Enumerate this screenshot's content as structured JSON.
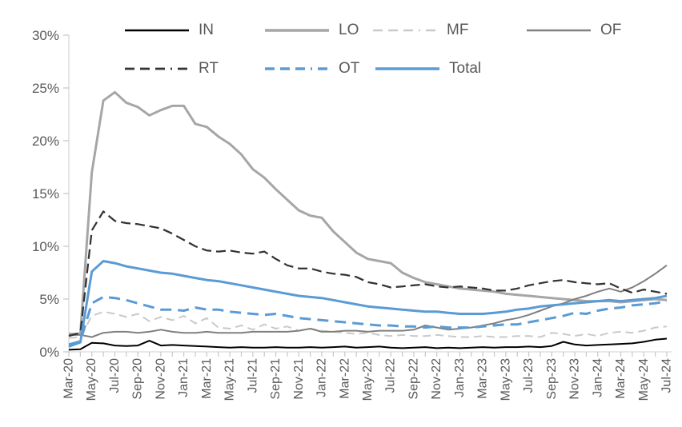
{
  "chart_data": {
    "type": "line",
    "title": "",
    "xlabel": "",
    "ylabel": "",
    "ylim": [
      0,
      30
    ],
    "grid": false,
    "legend_position": "top",
    "axis_color": "#d9d9d9",
    "tick_color": "#c8c8c8",
    "label_color": "#595959",
    "y_tick_labels": [
      "0%",
      "5%",
      "10%",
      "15%",
      "20%",
      "25%",
      "30%"
    ],
    "y_tick_values": [
      0,
      5,
      10,
      15,
      20,
      25,
      30
    ],
    "x_tick_labels": [
      "Mar-20",
      "May-20",
      "Jul-20",
      "Sep-20",
      "Nov-20",
      "Jan-21",
      "Mar-21",
      "May-21",
      "Jul-21",
      "Sep-21",
      "Nov-21",
      "Jan-22",
      "Mar-22",
      "May-22",
      "Jul-22",
      "Sep-22",
      "Nov-22",
      "Jan-23",
      "Mar-23",
      "May-23",
      "Jul-23",
      "Sep-23",
      "Nov-23",
      "Jan-24",
      "Mar-24",
      "May-24",
      "Jul-24"
    ],
    "x_months_total": 53,
    "series": [
      {
        "name": "IN",
        "color": "#000000",
        "style": "solid",
        "width": 2,
        "values": [
          0.2,
          0.25,
          0.85,
          0.8,
          0.6,
          0.55,
          0.6,
          1.05,
          0.6,
          0.65,
          0.6,
          0.55,
          0.5,
          0.45,
          0.4,
          0.45,
          0.4,
          0.4,
          0.45,
          0.4,
          0.4,
          0.45,
          0.4,
          0.45,
          0.5,
          0.4,
          0.45,
          0.5,
          0.4,
          0.35,
          0.4,
          0.45,
          0.35,
          0.4,
          0.35,
          0.4,
          0.45,
          0.4,
          0.45,
          0.45,
          0.5,
          0.45,
          0.55,
          0.95,
          0.7,
          0.6,
          0.65,
          0.7,
          0.75,
          0.8,
          0.95,
          1.15,
          1.25
        ]
      },
      {
        "name": "LO",
        "color": "#a6a6a6",
        "style": "solid",
        "width": 3,
        "values": [
          1.7,
          1.7,
          17.0,
          23.8,
          24.6,
          23.6,
          23.2,
          22.4,
          22.9,
          23.3,
          23.3,
          21.6,
          21.3,
          20.4,
          19.7,
          18.7,
          17.3,
          16.5,
          15.4,
          14.4,
          13.4,
          12.9,
          12.7,
          11.4,
          10.4,
          9.4,
          8.8,
          8.6,
          8.4,
          7.5,
          7.0,
          6.6,
          6.4,
          6.2,
          6.0,
          5.9,
          5.8,
          5.7,
          5.5,
          5.4,
          5.3,
          5.2,
          5.1,
          5.0,
          4.9,
          4.8,
          4.8,
          4.8,
          4.7,
          4.8,
          4.9,
          5.0,
          4.9
        ]
      },
      {
        "name": "MF",
        "color": "#c9c9c9",
        "style": "dashed",
        "width": 2,
        "dash": "10 6",
        "values": [
          1.3,
          1.4,
          3.4,
          3.8,
          3.6,
          3.3,
          3.6,
          2.9,
          3.3,
          3.0,
          3.4,
          2.7,
          3.2,
          2.3,
          2.2,
          2.5,
          2.1,
          2.6,
          2.2,
          2.4,
          2.0,
          2.2,
          2.0,
          1.9,
          1.8,
          1.7,
          1.8,
          1.6,
          1.5,
          1.6,
          1.5,
          1.5,
          1.6,
          1.5,
          1.4,
          1.4,
          1.5,
          1.4,
          1.4,
          1.5,
          1.5,
          1.4,
          1.8,
          1.7,
          1.5,
          1.7,
          1.5,
          1.8,
          1.9,
          1.8,
          2.0,
          2.3,
          2.4
        ]
      },
      {
        "name": "OF",
        "color": "#808080",
        "style": "solid",
        "width": 2,
        "values": [
          1.6,
          1.6,
          1.4,
          1.8,
          1.9,
          1.9,
          1.8,
          1.9,
          2.1,
          1.9,
          1.8,
          1.8,
          1.9,
          1.8,
          1.8,
          1.8,
          1.9,
          1.9,
          1.9,
          1.9,
          2.0,
          2.2,
          1.9,
          1.9,
          2.0,
          2.0,
          1.9,
          2.0,
          2.0,
          2.0,
          2.1,
          2.5,
          2.3,
          2.1,
          2.2,
          2.3,
          2.5,
          2.7,
          3.0,
          3.2,
          3.5,
          3.9,
          4.3,
          4.6,
          5.0,
          5.3,
          5.7,
          6.0,
          5.7,
          6.1,
          6.7,
          7.4,
          8.2
        ]
      },
      {
        "name": "RT",
        "color": "#333333",
        "style": "dashed",
        "width": 2.25,
        "dash": "12 6",
        "values": [
          1.5,
          1.8,
          11.5,
          13.3,
          12.4,
          12.2,
          12.1,
          11.9,
          11.7,
          11.2,
          10.6,
          10.0,
          9.6,
          9.5,
          9.6,
          9.4,
          9.3,
          9.5,
          8.8,
          8.2,
          7.9,
          7.9,
          7.6,
          7.4,
          7.3,
          7.1,
          6.6,
          6.4,
          6.1,
          6.2,
          6.3,
          6.4,
          6.2,
          6.1,
          6.2,
          6.1,
          6.0,
          5.8,
          5.8,
          6.0,
          6.3,
          6.5,
          6.7,
          6.8,
          6.6,
          6.5,
          6.4,
          6.5,
          6.0,
          5.6,
          5.9,
          5.7,
          5.5
        ]
      },
      {
        "name": "OT",
        "color": "#5b9bd5",
        "style": "dashed",
        "width": 3,
        "dash": "14 8",
        "values": [
          0.7,
          1.0,
          4.6,
          5.2,
          5.1,
          4.9,
          4.6,
          4.3,
          4.0,
          4.0,
          3.9,
          4.2,
          4.0,
          4.0,
          3.8,
          3.7,
          3.6,
          3.5,
          3.6,
          3.4,
          3.2,
          3.1,
          3.0,
          2.9,
          2.8,
          2.7,
          2.6,
          2.5,
          2.5,
          2.4,
          2.4,
          2.3,
          2.4,
          2.3,
          2.3,
          2.3,
          2.4,
          2.5,
          2.6,
          2.6,
          2.8,
          3.0,
          3.2,
          3.4,
          3.7,
          3.6,
          3.9,
          4.1,
          4.2,
          4.4,
          4.5,
          4.6,
          4.8
        ]
      },
      {
        "name": "Total",
        "color": "#5b9bd5",
        "style": "solid",
        "width": 3,
        "values": [
          0.5,
          0.9,
          7.6,
          8.6,
          8.4,
          8.1,
          7.9,
          7.7,
          7.5,
          7.4,
          7.2,
          7.0,
          6.8,
          6.7,
          6.5,
          6.3,
          6.1,
          5.9,
          5.7,
          5.5,
          5.3,
          5.2,
          5.1,
          4.9,
          4.7,
          4.5,
          4.3,
          4.2,
          4.1,
          4.0,
          3.9,
          3.8,
          3.8,
          3.7,
          3.6,
          3.6,
          3.6,
          3.7,
          3.8,
          4.0,
          4.1,
          4.3,
          4.4,
          4.5,
          4.6,
          4.7,
          4.8,
          4.9,
          4.8,
          4.9,
          5.0,
          5.1,
          5.3
        ]
      }
    ]
  }
}
